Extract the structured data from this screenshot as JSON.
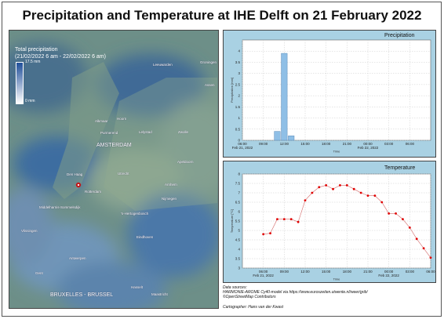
{
  "title": "Precipitation and Temperature at IHE Delft on 21 February 2022",
  "map": {
    "legend_title_1": "Total precipitation",
    "legend_title_2": "(21/02/2022 6 am - 22/02/2022 6 am)",
    "legend_max": "17.5 mm",
    "legend_min": "0 mm",
    "places": [
      {
        "name": "Leeuwarden",
        "big": false
      },
      {
        "name": "Groningen",
        "big": false
      },
      {
        "name": "Assen",
        "big": false
      },
      {
        "name": "Hoorn",
        "big": false
      },
      {
        "name": "Alkmaar",
        "big": false
      },
      {
        "name": "Purmerend",
        "big": false
      },
      {
        "name": "Lelystad",
        "big": false
      },
      {
        "name": "Zwolle",
        "big": false
      },
      {
        "name": "AMSTERDAM",
        "big": true
      },
      {
        "name": "Den Haag",
        "big": false
      },
      {
        "name": "Utrecht",
        "big": false
      },
      {
        "name": "Apeldoorn",
        "big": false
      },
      {
        "name": "Rotterdam",
        "big": false
      },
      {
        "name": "Arnhem",
        "big": false
      },
      {
        "name": "Middelharnis-Sommelsdijk",
        "big": false
      },
      {
        "name": "Nijmegen",
        "big": false
      },
      {
        "name": "'s-Hertogenbosch",
        "big": false
      },
      {
        "name": "Vlissingen",
        "big": false
      },
      {
        "name": "Eindhoven",
        "big": false
      },
      {
        "name": "Antwerpen",
        "big": false
      },
      {
        "name": "Gent",
        "big": false
      },
      {
        "name": "BRUXELLES - BRUSSEL",
        "big": true
      },
      {
        "name": "Hasselt",
        "big": false
      },
      {
        "name": "Maastricht",
        "big": false
      }
    ]
  },
  "sources": {
    "line1": "Data sources:",
    "line2": "HARMONIE-AROME Cy40-model via https://www.euroszeiten.utwente.nl/weer/grib/",
    "line3": "©OpenStreetMap Contributors"
  },
  "cartographer": "Cartographer: Hans van der Kwast",
  "chart_data": [
    {
      "type": "bar",
      "title": "Precipitation",
      "xlabel": "Time",
      "ylabel": "Precipitation [mm]",
      "ylim": [
        0,
        4.5
      ],
      "yticks": [
        0,
        0.5,
        1,
        1.5,
        2,
        2.5,
        3,
        3.5,
        4
      ],
      "xlim": [
        3,
        30
      ],
      "xticks": [
        {
          "h": 3,
          "label": "06:00"
        },
        {
          "h": 6,
          "label": "09:00"
        },
        {
          "h": 9,
          "label": "12:00"
        },
        {
          "h": 12,
          "label": "15:00"
        },
        {
          "h": 15,
          "label": "18:00"
        },
        {
          "h": 18,
          "label": "21:00"
        },
        {
          "h": 21,
          "label": "00:00"
        },
        {
          "h": 24,
          "label": "03:00"
        },
        {
          "h": 27,
          "label": "06:00"
        }
      ],
      "date_labels": [
        {
          "h": 3,
          "label": "Feb 21, 2022"
        },
        {
          "h": 21,
          "label": "Feb 22, 2022"
        }
      ],
      "x": [
        8,
        9,
        10
      ],
      "values": [
        0.4,
        3.9,
        0.2
      ],
      "color": "#8fbfe6"
    },
    {
      "type": "line",
      "title": "Temperature",
      "xlabel": "Time",
      "ylabel": "Temperature [°C]",
      "ylim": [
        3,
        8
      ],
      "yticks": [
        3,
        3.5,
        4,
        4.5,
        5,
        5.5,
        6,
        6.5,
        7,
        7.5,
        8
      ],
      "xlim": [
        3,
        30
      ],
      "xticks": [
        {
          "h": 6,
          "label": "06:00"
        },
        {
          "h": 9,
          "label": "09:00"
        },
        {
          "h": 12,
          "label": "12:00"
        },
        {
          "h": 15,
          "label": "15:00"
        },
        {
          "h": 18,
          "label": "18:00"
        },
        {
          "h": 21,
          "label": "21:00"
        },
        {
          "h": 24,
          "label": "00:00"
        },
        {
          "h": 27,
          "label": "03:00"
        },
        {
          "h": 30,
          "label": "06:00"
        }
      ],
      "date_labels": [
        {
          "h": 6,
          "label": "Feb 21, 2022"
        },
        {
          "h": 24,
          "label": "Feb 22, 2022"
        }
      ],
      "x": [
        6,
        7,
        8,
        9,
        10,
        11,
        12,
        13,
        14,
        15,
        16,
        17,
        18,
        19,
        20,
        21,
        22,
        23,
        24,
        25,
        26,
        27,
        28,
        29,
        30
      ],
      "values": [
        4.8,
        4.85,
        5.6,
        5.6,
        5.6,
        5.45,
        6.6,
        7.0,
        7.3,
        7.4,
        7.2,
        7.4,
        7.4,
        7.2,
        7.0,
        6.85,
        6.85,
        6.5,
        5.9,
        5.9,
        5.6,
        5.15,
        4.55,
        4.05,
        3.55
      ],
      "color": "#e00000"
    }
  ]
}
